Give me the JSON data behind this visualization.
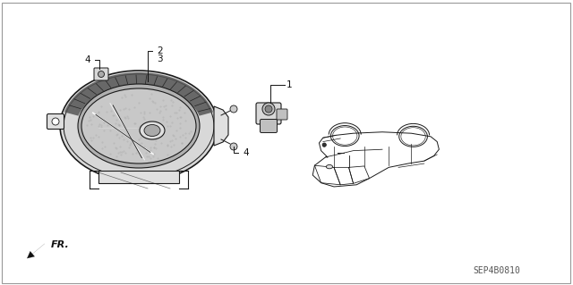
{
  "bg_color": "#ffffff",
  "fig_width": 6.4,
  "fig_height": 3.19,
  "diagram_code": "SEP4B0810",
  "fr_label": "FR.",
  "line_color": "#1a1a1a",
  "text_color": "#111111",
  "light_gray": "#cccccc",
  "mid_gray": "#888888",
  "dark_gray": "#444444",
  "stipple_color": "#999999"
}
